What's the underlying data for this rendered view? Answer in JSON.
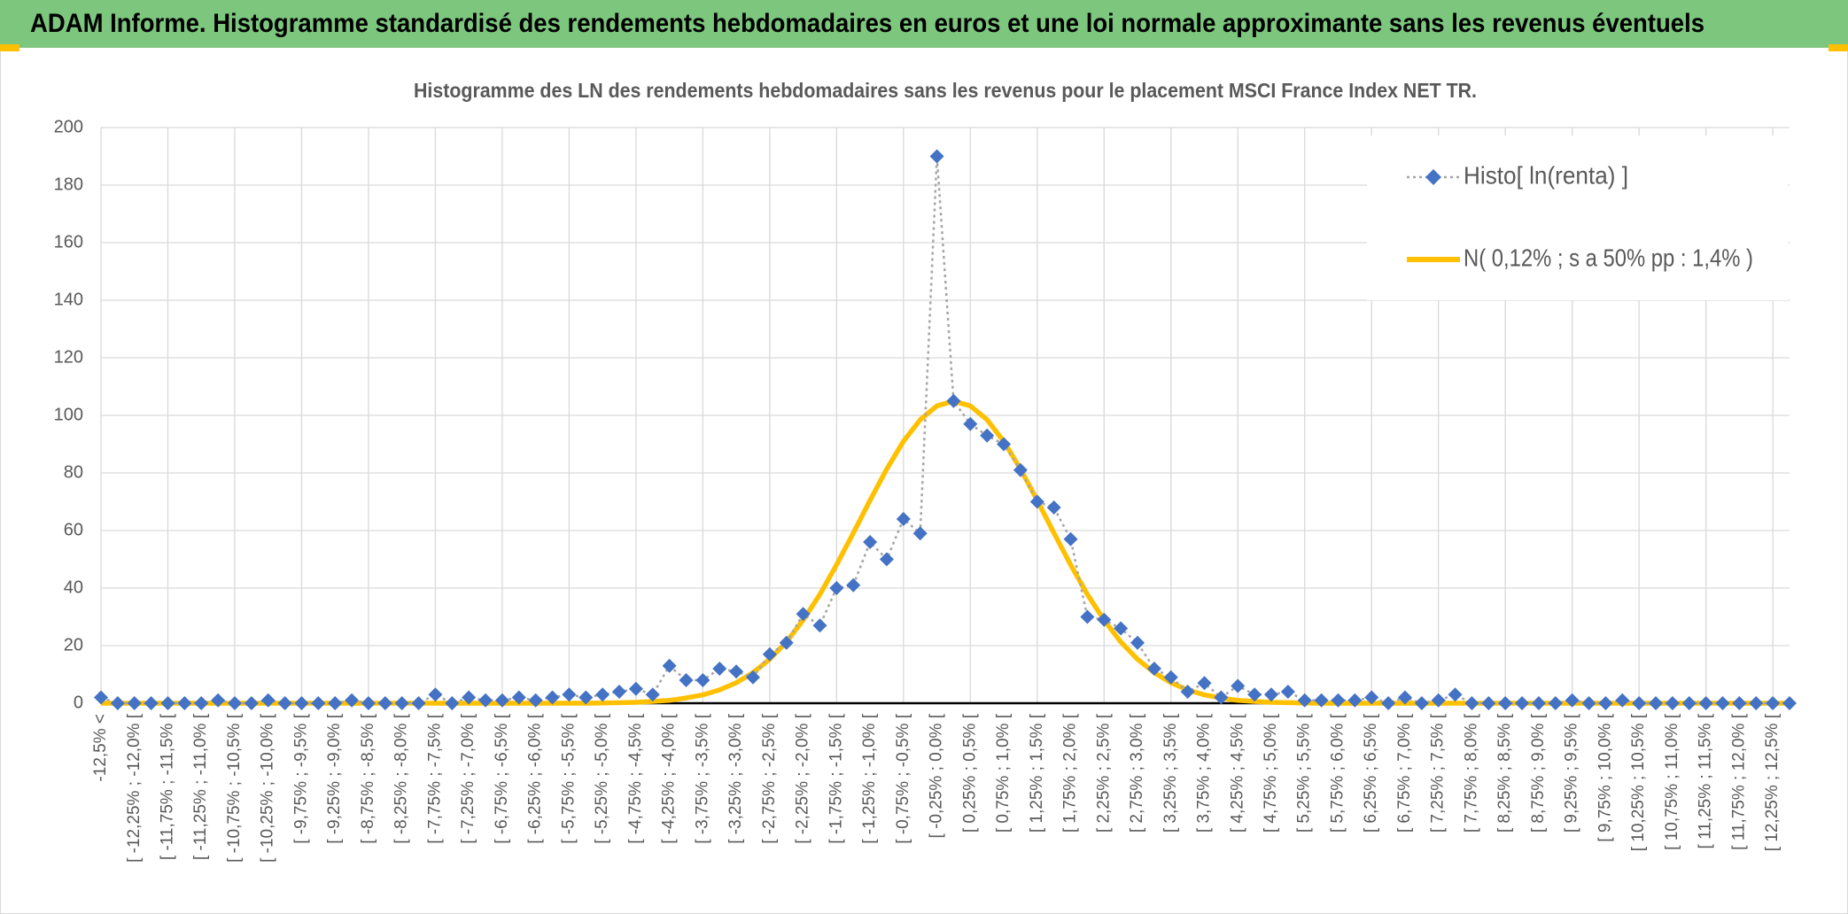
{
  "header": {
    "title": "ADAM Informe. Histogramme standardisé des rendements hebdomadaires en euros et une loi normale approximante sans les revenus éventuels"
  },
  "chart_data": {
    "type": "line",
    "title": "Histogramme des LN des rendements hebdomadaires sans les revenus pour le placement MSCI France Index NET TR.",
    "categories": [
      "-12,5% <",
      null,
      "[ -12,25% ; -12,0% [",
      null,
      "[ -11,75% ; -11,5% [",
      null,
      "[ -11,25% ; -11,0% [",
      null,
      "[ -10,75% ; -10,5% [",
      null,
      "[ -10,25% ; -10,0% [",
      null,
      "[ -9,75% ; -9,5% [",
      null,
      "[ -9,25% ; -9,0% [",
      null,
      "[ -8,75% ; -8,5% [",
      null,
      "[ -8,25% ; -8,0% [",
      null,
      "[ -7,75% ; -7,5% [",
      null,
      "[ -7,25% ; -7,0% [",
      null,
      "[ -6,75% ; -6,5% [",
      null,
      "[ -6,25% ; -6,0% [",
      null,
      "[ -5,75% ; -5,5% [",
      null,
      "[ -5,25% ; -5,0% [",
      null,
      "[ -4,75% ; -4,5% [",
      null,
      "[ -4,25% ; -4,0% [",
      null,
      "[ -3,75% ; -3,5% [",
      null,
      "[ -3,25% ; -3,0% [",
      null,
      "[ -2,75% ; -2,5% [",
      null,
      "[ -2,25% ; -2,0% [",
      null,
      "[ -1,75% ; -1,5% [",
      null,
      "[ -1,25% ; -1,0% [",
      null,
      "[ -0,75% ; -0,5% [",
      null,
      "[ -0,25% ; 0,0% [",
      null,
      "[ 0,25% ; 0,5% [",
      null,
      "[ 0,75% ; 1,0% [",
      null,
      "[ 1,25% ; 1,5% [",
      null,
      "[ 1,75% ; 2,0% [",
      null,
      "[ 2,25% ; 2,5% [",
      null,
      "[ 2,75% ; 3,0% [",
      null,
      "[ 3,25% ; 3,5% [",
      null,
      "[ 3,75% ; 4,0% [",
      null,
      "[ 4,25% ; 4,5% [",
      null,
      "[ 4,75% ; 5,0% [",
      null,
      "[ 5,25% ; 5,5% [",
      null,
      "[ 5,75% ; 6,0% [",
      null,
      "[ 6,25% ; 6,5% [",
      null,
      "[ 6,75% ; 7,0% [",
      null,
      "[ 7,25% ; 7,5% [",
      null,
      "[ 7,75% ; 8,0% [",
      null,
      "[ 8,25% ; 8,5% [",
      null,
      "[ 8,75% ; 9,0% [",
      null,
      "[ 9,25% ; 9,5% [",
      null,
      "[ 9,75% ; 10,0% [",
      null,
      "[ 10,25% ; 10,5% [",
      null,
      "[ 10,75% ; 11,0% [",
      null,
      "[ 11,25% ; 11,5% [",
      null,
      "[ 11,75% ; 12,0% [",
      null,
      "[ 12,25% ; 12,5% [",
      null
    ],
    "series": [
      {
        "name": "Histo[ ln(renta) ]",
        "color": "#4472c4",
        "line_color": "#a5a5a5",
        "marker": "diamond",
        "dashed": true,
        "values": [
          2,
          0,
          0,
          0,
          0,
          0,
          0,
          1,
          0,
          0,
          1,
          0,
          0,
          0,
          0,
          1,
          0,
          0,
          0,
          0,
          3,
          0,
          2,
          1,
          1,
          2,
          1,
          2,
          3,
          2,
          3,
          4,
          5,
          3,
          13,
          8,
          8,
          12,
          11,
          9,
          17,
          21,
          31,
          27,
          40,
          41,
          56,
          50,
          64,
          59,
          190,
          105,
          97,
          93,
          90,
          81,
          70,
          68,
          57,
          30,
          29,
          26,
          21,
          12,
          9,
          4,
          7,
          2,
          6,
          3,
          3,
          4,
          1,
          1,
          1,
          1,
          2,
          0,
          2,
          0,
          1,
          3,
          0,
          0,
          0,
          0,
          0,
          0,
          1,
          0,
          0,
          1,
          0,
          0,
          0,
          0,
          0,
          0,
          0,
          0,
          0,
          0
        ]
      },
      {
        "name": "N( 0,12% ; s a 50% pp : 1,4% )",
        "color": "#ffc000",
        "marker": "none",
        "dashed": false,
        "values": [
          0,
          0,
          0,
          0,
          0,
          0,
          0,
          0,
          0,
          0,
          0,
          0,
          0,
          0,
          0,
          0,
          0,
          0,
          0,
          0,
          0,
          0,
          0,
          0,
          0,
          0,
          0,
          0,
          0,
          0,
          0.1,
          0.2,
          0.3,
          0.6,
          1.0,
          1.8,
          2.9,
          4.6,
          7.1,
          10.6,
          15.3,
          21.3,
          28.9,
          37.8,
          48.1,
          59.1,
          70.5,
          81.4,
          91.0,
          98.5,
          103.3,
          105,
          103.3,
          98.5,
          91.0,
          81.4,
          70.5,
          59.1,
          48.1,
          37.8,
          28.9,
          21.3,
          15.3,
          10.6,
          7.1,
          4.6,
          2.9,
          1.8,
          1.0,
          0.6,
          0.3,
          0.2,
          0.1,
          0,
          0,
          0,
          0,
          0,
          0,
          0,
          0,
          0,
          0,
          0,
          0,
          0,
          0,
          0,
          0,
          0,
          0,
          0,
          0,
          0,
          0,
          0,
          0,
          0,
          0,
          0,
          0,
          0
        ]
      }
    ],
    "ylim": [
      0,
      200
    ],
    "yticks": [
      0,
      20,
      40,
      60,
      80,
      100,
      120,
      140,
      160,
      180,
      200
    ],
    "grid": true,
    "legend": "top-right"
  }
}
